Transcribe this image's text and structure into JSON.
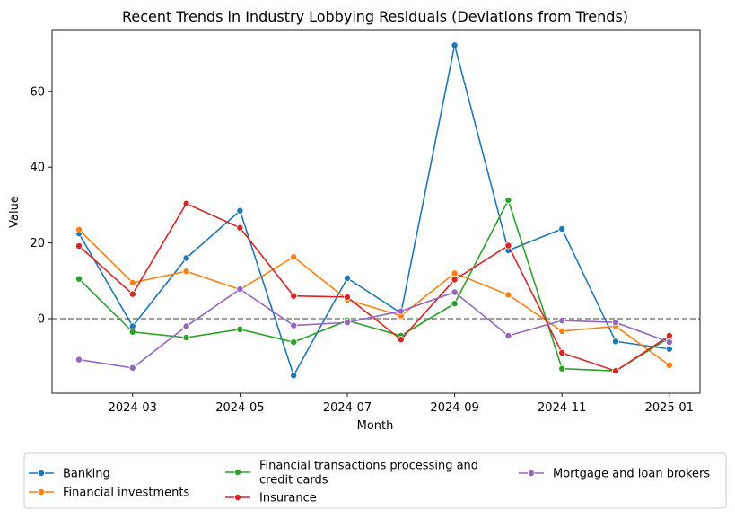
{
  "chart_data": {
    "type": "line",
    "title": "Recent Trends in Industry Lobbying Residuals (Deviations from Trends)",
    "xlabel": "Month",
    "ylabel": "Value",
    "x": [
      "2024-02",
      "2024-03",
      "2024-04",
      "2024-05",
      "2024-06",
      "2024-07",
      "2024-08",
      "2024-09",
      "2024-10",
      "2024-11",
      "2024-12",
      "2025-01"
    ],
    "x_ticks": [
      "2024-03",
      "2024-05",
      "2024-07",
      "2024-09",
      "2024-11",
      "2025-01"
    ],
    "y_ticks": [
      0,
      20,
      40,
      60
    ],
    "ylim": [
      -20,
      76
    ],
    "reference_line": {
      "y": 0,
      "style": "dashed",
      "color": "#808080"
    },
    "grid": false,
    "legend_position": "bottom, outside plot",
    "series": [
      {
        "name": "Banking",
        "color": "#1f77b4",
        "values": [
          22.5,
          -2,
          16,
          28.5,
          -15,
          10.7,
          1.5,
          72.2,
          18,
          23.7,
          -6,
          -8
        ]
      },
      {
        "name": "Financial investments",
        "color": "#ff7f0e",
        "values": [
          23.5,
          9.5,
          12.5,
          7.7,
          16.3,
          5,
          0.8,
          12,
          6.3,
          -3.3,
          -2,
          -12.3
        ]
      },
      {
        "name": "Financial transactions processing and credit cards",
        "name_lines": [
          "Financial transactions processing and",
          "credit cards"
        ],
        "color": "#2ca02c",
        "values": [
          10.5,
          -3.5,
          -5,
          -2.8,
          -6.2,
          -0.5,
          -4.5,
          4,
          31.3,
          -13.2,
          -13.8,
          -5
        ]
      },
      {
        "name": "Insurance",
        "color": "#d62728",
        "values": [
          19.2,
          6.5,
          30.4,
          24,
          6,
          5.7,
          -5.5,
          10.3,
          19.3,
          -9,
          -13.8,
          -4.5
        ]
      },
      {
        "name": "Mortgage and loan brokers",
        "color": "#9467bd",
        "values": [
          -10.8,
          -13,
          -2,
          7.8,
          -1.8,
          -1,
          2,
          7,
          -4.5,
          -0.5,
          -1,
          -6.2
        ]
      }
    ]
  }
}
